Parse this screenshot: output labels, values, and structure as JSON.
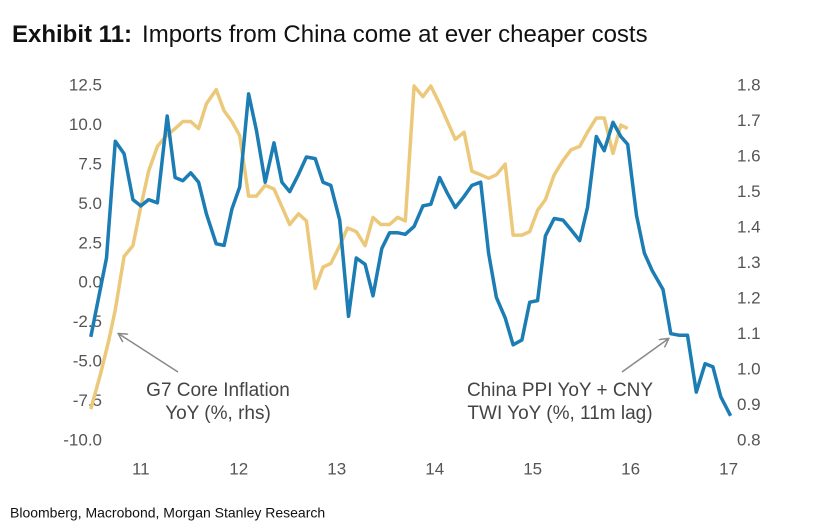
{
  "chart_data": {
    "type": "line",
    "title": {
      "label": "Exhibit 11:",
      "text": "Imports from China come at ever cheaper costs"
    },
    "source": "Bloomberg, Macrobond, Morgan Stanley Research",
    "annotations": [
      {
        "lines": [
          "G7 Core Inflation",
          "YoY (%, rhs)"
        ]
      },
      {
        "lines": [
          "China PPI YoY + CNY",
          "TWI YoY (%, 11m lag)"
        ]
      }
    ],
    "xlim": [
      2010.4,
      2017.3
    ],
    "xticks": [
      {
        "value": 2011,
        "label": "11"
      },
      {
        "value": 2012,
        "label": "12"
      },
      {
        "value": 2013,
        "label": "13"
      },
      {
        "value": 2014,
        "label": "14"
      },
      {
        "value": 2015,
        "label": "15"
      },
      {
        "value": 2016,
        "label": "16"
      },
      {
        "value": 2017,
        "label": "17"
      }
    ],
    "ylim": [
      -10,
      12.5
    ],
    "yticks": [
      {
        "value": -10,
        "label": "-10.0"
      },
      -7.5,
      {
        "value": -5,
        "label": "-5.0"
      },
      -2.5,
      {
        "value": 0,
        "label": "0.0"
      },
      2.5,
      {
        "value": 5,
        "label": "5.0"
      },
      7.5,
      {
        "value": 10,
        "label": "10.0"
      },
      12.5
    ],
    "y2lim": [
      0.8,
      1.8
    ],
    "y2ticks": [
      0.8,
      0.9,
      {
        "value": 1,
        "label": "1.0"
      },
      1.1,
      1.2,
      1.3,
      1.4,
      1.5,
      1.6,
      1.7,
      1.8
    ],
    "grid": false,
    "series": [
      {
        "color": "#1b7db3",
        "axis": "y",
        "x": [
          2010.49,
          2010.65,
          2010.74,
          2010.83,
          2010.92,
          2011.0,
          2011.08,
          2011.17,
          2011.27,
          2011.35,
          2011.43,
          2011.51,
          2011.59,
          2011.67,
          2011.77,
          2011.85,
          2011.93,
          2012.01,
          2012.1,
          2012.18,
          2012.27,
          2012.36,
          2012.44,
          2012.52,
          2012.61,
          2012.69,
          2012.78,
          2012.86,
          2012.94,
          2013.03,
          2013.12,
          2013.2,
          2013.29,
          2013.37,
          2013.46,
          2013.54,
          2013.62,
          2013.7,
          2013.79,
          2013.88,
          2013.96,
          2014.05,
          2014.13,
          2014.21,
          2014.3,
          2014.38,
          2014.47,
          2014.55,
          2014.63,
          2014.72,
          2014.8,
          2014.89,
          2014.97,
          2015.05,
          2015.13,
          2015.22,
          2015.31,
          2015.39,
          2015.48,
          2015.56,
          2015.65,
          2015.73,
          2015.82,
          2015.9,
          2015.97,
          2016.06,
          2016.14,
          2016.22,
          2016.33,
          2016.41,
          2016.5,
          2016.58,
          2016.67,
          2016.76,
          2016.84,
          2016.92,
          2017.02
        ],
        "values": [
          -3.4,
          1.6,
          9.0,
          8.2,
          5.3,
          4.9,
          5.3,
          5.1,
          10.6,
          6.7,
          6.5,
          7.0,
          6.4,
          4.4,
          2.5,
          2.4,
          4.7,
          6.1,
          12.0,
          9.7,
          6.4,
          8.9,
          6.4,
          5.8,
          6.9,
          8.0,
          7.9,
          6.4,
          6.2,
          4.0,
          -2.1,
          1.6,
          1.2,
          -0.8,
          2.2,
          3.2,
          3.2,
          3.1,
          3.6,
          4.9,
          5.0,
          6.7,
          5.7,
          4.8,
          5.5,
          6.2,
          6.4,
          1.9,
          -0.9,
          -2.2,
          -3.9,
          -3.6,
          -1.2,
          -1.1,
          3.0,
          4.1,
          4.0,
          3.4,
          2.7,
          4.8,
          9.3,
          8.4,
          10.2,
          9.3,
          8.8,
          4.3,
          1.9,
          0.8,
          -0.4,
          -3.2,
          -3.3,
          -3.3,
          -6.9,
          -5.1,
          -5.3,
          -7.2,
          -8.4
        ]
      },
      {
        "color": "#ecc97a",
        "axis": "y2",
        "x": [
          2010.49,
          2010.59,
          2010.67,
          2010.74,
          2010.83,
          2010.92,
          2011.0,
          2011.08,
          2011.17,
          2011.26,
          2011.35,
          2011.43,
          2011.51,
          2011.59,
          2011.67,
          2011.77,
          2011.85,
          2011.93,
          2012.01,
          2012.1,
          2012.18,
          2012.27,
          2012.36,
          2012.44,
          2012.52,
          2012.61,
          2012.69,
          2012.78,
          2012.86,
          2012.94,
          2013.03,
          2013.11,
          2013.2,
          2013.29,
          2013.37,
          2013.45,
          2013.54,
          2013.62,
          2013.7,
          2013.79,
          2013.88,
          2013.96,
          2014.05,
          2014.13,
          2014.21,
          2014.3,
          2014.38,
          2014.47,
          2014.55,
          2014.63,
          2014.72,
          2014.8,
          2014.89,
          2014.97,
          2015.05,
          2015.13,
          2015.22,
          2015.31,
          2015.39,
          2015.48,
          2015.56,
          2015.65,
          2015.73,
          2015.82,
          2015.9,
          2015.97
        ],
        "values": [
          0.89,
          0.99,
          1.08,
          1.17,
          1.32,
          1.35,
          1.46,
          1.56,
          1.63,
          1.66,
          1.68,
          1.7,
          1.7,
          1.68,
          1.75,
          1.79,
          1.73,
          1.7,
          1.66,
          1.49,
          1.49,
          1.52,
          1.51,
          1.46,
          1.41,
          1.44,
          1.42,
          1.23,
          1.29,
          1.3,
          1.35,
          1.4,
          1.39,
          1.35,
          1.43,
          1.41,
          1.41,
          1.43,
          1.42,
          1.8,
          1.77,
          1.8,
          1.75,
          1.7,
          1.65,
          1.67,
          1.56,
          1.55,
          1.54,
          1.55,
          1.58,
          1.38,
          1.38,
          1.39,
          1.45,
          1.48,
          1.55,
          1.59,
          1.62,
          1.63,
          1.67,
          1.71,
          1.71,
          1.61,
          1.69,
          1.68
        ]
      }
    ]
  }
}
